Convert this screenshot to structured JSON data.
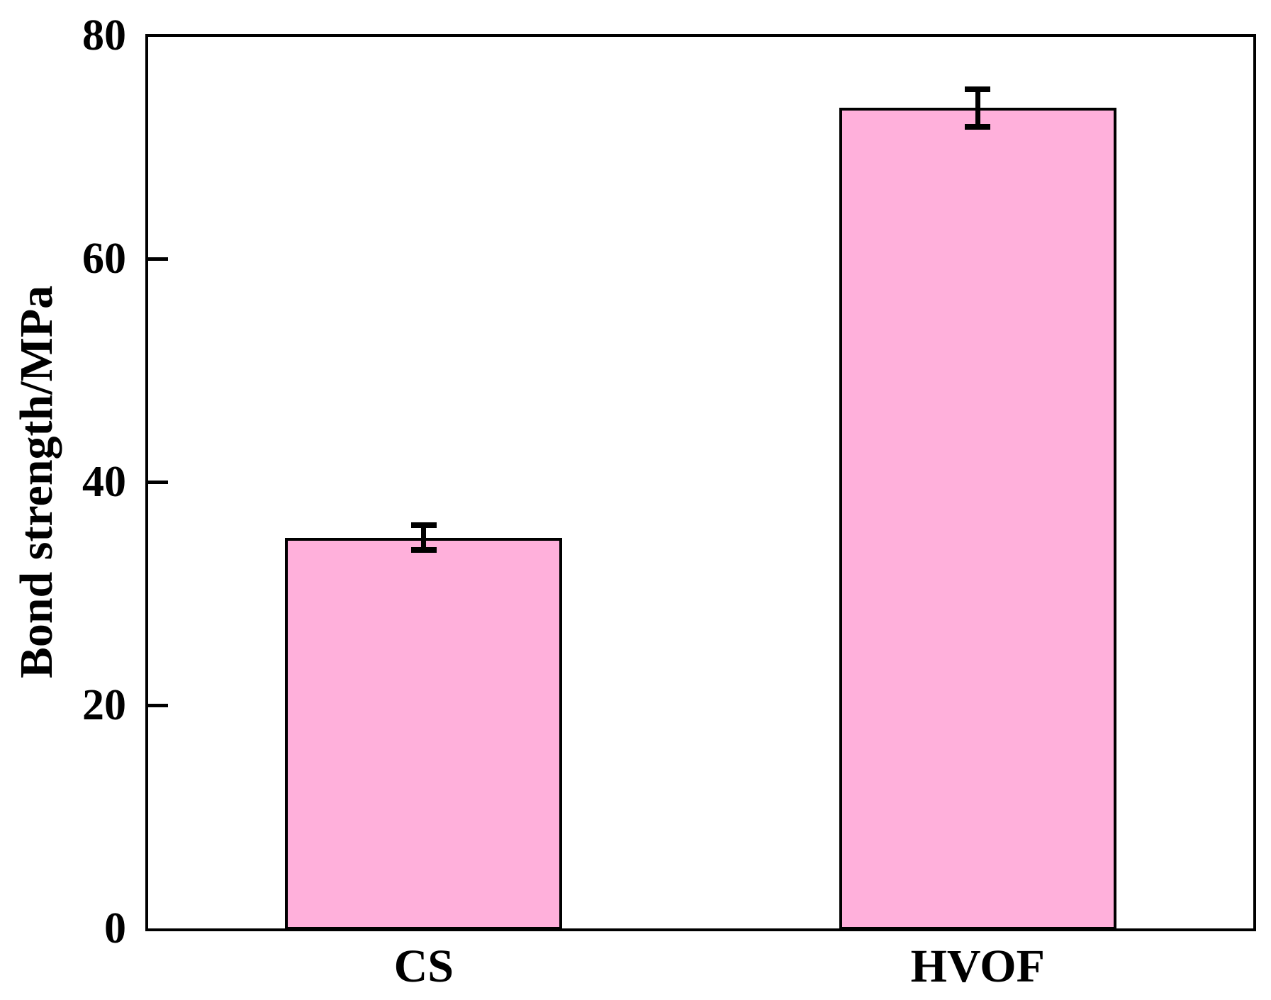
{
  "figure": {
    "background": "#ffffff",
    "frame_color": "#000000"
  },
  "chart_data": {
    "type": "bar",
    "title": "",
    "ylabel": "Bond strength/MPa",
    "categories": [
      "CS",
      "HVOF"
    ],
    "values": [
      35,
      73.5
    ],
    "errors": [
      1.1,
      1.7
    ],
    "ylim": [
      0,
      80
    ],
    "yticks": [
      0,
      20,
      40,
      60,
      80
    ],
    "ytick_labels": [
      "0",
      "20",
      "40",
      "60",
      "80"
    ],
    "grid": false,
    "legend": "none",
    "bar_fill_color": "#ffb0db",
    "bar_edge_color": "#000000",
    "error_bar_color": "#000000",
    "axis_color": "#000000"
  }
}
